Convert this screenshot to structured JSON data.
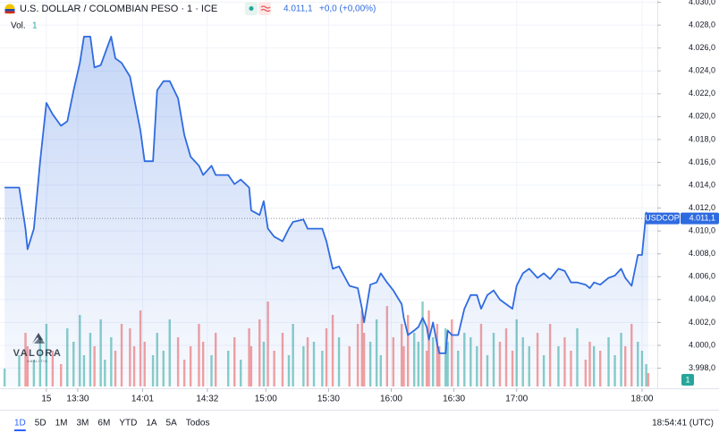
{
  "chart_data": {
    "type": "line",
    "title": "U.S. DOLLAR / COLOMBIAN PESO · 1 · ICE",
    "price": "4.011,1",
    "change": "+0,0 (+0,00%)",
    "vol_label": "Vol.",
    "vol_value": "1",
    "watermark": {
      "name": "VALORA",
      "sub": "ANALITIK"
    },
    "xlim": [
      772.8,
      1087.3
    ],
    "ylim": [
      3996.4,
      4030.2
    ],
    "grid": true,
    "xticks": [
      {
        "value": 795,
        "label": "15"
      },
      {
        "value": 810,
        "label": "13:30"
      },
      {
        "value": 841,
        "label": "14:01"
      },
      {
        "value": 872,
        "label": "14:32"
      },
      {
        "value": 900,
        "label": "15:00"
      },
      {
        "value": 930,
        "label": "15:30"
      },
      {
        "value": 960,
        "label": "16:00"
      },
      {
        "value": 990,
        "label": "16:30"
      },
      {
        "value": 1020,
        "label": "17:00"
      },
      {
        "value": 1080,
        "label": "18:00"
      }
    ],
    "yticks": [
      {
        "value": 3998,
        "label": "3.998,0"
      },
      {
        "value": 4000,
        "label": "4.000,0"
      },
      {
        "value": 4002,
        "label": "4.002,0"
      },
      {
        "value": 4004,
        "label": "4.004,0"
      },
      {
        "value": 4006,
        "label": "4.006,0"
      },
      {
        "value": 4008,
        "label": "4.008,0"
      },
      {
        "value": 4010,
        "label": "4.010,0"
      },
      {
        "value": 4012,
        "label": "4.012,0"
      },
      {
        "value": 4014,
        "label": "4.014,0"
      },
      {
        "value": 4016,
        "label": "4.016,0"
      },
      {
        "value": 4018,
        "label": "4.018,0"
      },
      {
        "value": 4020,
        "label": "4.020,0"
      },
      {
        "value": 4022,
        "label": "4.022,0"
      },
      {
        "value": 4024,
        "label": "4.024,0"
      },
      {
        "value": 4026,
        "label": "4.026,0"
      },
      {
        "value": 4028,
        "label": "4.028,0"
      },
      {
        "value": 4030,
        "label": "4.030,0"
      }
    ],
    "series": [
      {
        "name": "USDCOP",
        "color": "#2f6be0",
        "x": [
          775,
          782,
          785,
          786,
          789,
          792,
          795,
          798,
          802,
          805,
          808,
          811,
          813,
          816,
          818,
          821,
          823,
          826,
          828,
          831,
          835,
          837,
          840,
          842,
          846,
          848,
          851,
          854,
          858,
          861,
          864,
          868,
          870,
          874,
          876,
          882,
          885,
          888,
          892,
          893,
          897,
          899,
          901,
          904,
          908,
          911,
          913,
          918,
          920,
          923,
          927,
          929,
          932,
          935,
          940,
          944,
          946,
          947,
          950,
          953,
          955,
          958,
          961,
          965,
          966,
          968,
          971,
          973,
          975,
          977,
          978,
          980,
          982,
          983,
          986,
          987,
          989,
          992,
          995,
          998,
          1001,
          1003,
          1006,
          1009,
          1012,
          1015,
          1018,
          1020,
          1023,
          1026,
          1030,
          1033,
          1036,
          1040,
          1043,
          1046,
          1049,
          1053,
          1055,
          1057,
          1060,
          1064,
          1067,
          1070,
          1072,
          1075,
          1078,
          1080,
          1082,
          1083
        ],
        "values": [
          4013.8,
          4013.8,
          4010.2,
          4008.4,
          4010.2,
          4016.1,
          4021.2,
          4020.2,
          4019.2,
          4019.6,
          4022.3,
          4024.7,
          4027.0,
          4027.0,
          4024.3,
          4024.5,
          4025.5,
          4027.0,
          4025.1,
          4024.7,
          4023.5,
          4021.6,
          4018.8,
          4016.1,
          4016.1,
          4022.3,
          4023.1,
          4023.1,
          4021.6,
          4018.4,
          4016.5,
          4015.7,
          4014.9,
          4015.7,
          4014.9,
          4014.9,
          4014.1,
          4014.5,
          4013.8,
          4011.8,
          4011.4,
          4012.6,
          4010.2,
          4009.5,
          4009.1,
          4010.2,
          4010.8,
          4011.0,
          4010.2,
          4010.2,
          4010.2,
          4009.1,
          4006.7,
          4006.9,
          4005.2,
          4005.0,
          4003.2,
          4002.0,
          4005.3,
          4005.5,
          4006.3,
          4005.5,
          4004.8,
          4003.6,
          4002.4,
          4000.9,
          4001.3,
          4001.6,
          4002.4,
          4001.6,
          4000.5,
          4002.0,
          4000.1,
          3999.3,
          3999.3,
          4001.3,
          4000.9,
          4000.9,
          4003.2,
          4004.4,
          4004.4,
          4003.2,
          4004.4,
          4004.8,
          4004.0,
          4003.6,
          4003.2,
          4005.2,
          4006.3,
          4006.7,
          4005.9,
          4006.3,
          4005.8,
          4006.7,
          4006.5,
          4005.5,
          4005.5,
          4005.3,
          4005.0,
          4005.5,
          4005.3,
          4005.9,
          4006.1,
          4006.7,
          4005.9,
          4005.2,
          4007.9,
          4007.9,
          4011.6,
          4011.1
        ]
      }
    ],
    "last": {
      "value": 4011.1,
      "label": "4.011,1"
    },
    "volume": {
      "ylim": [
        0,
        100
      ],
      "up_color": "#26a69a",
      "down_color": "#ef5350",
      "values": [
        20,
        35,
        60,
        45,
        30,
        55,
        70,
        40,
        25,
        65,
        50,
        80,
        35,
        60,
        45,
        75,
        30,
        55,
        40,
        70,
        65,
        45,
        85,
        50,
        35,
        60,
        40,
        75,
        55,
        30,
        45,
        70,
        50,
        35,
        60,
        40,
        55,
        30,
        65,
        45,
        75,
        50,
        95,
        40,
        60,
        35,
        70,
        45,
        55,
        50,
        40,
        65,
        80,
        55,
        45,
        70,
        85,
        60,
        50,
        75,
        35,
        90,
        55,
        70,
        45,
        80,
        60,
        50,
        95,
        40,
        85,
        55,
        70,
        45,
        65,
        50,
        75,
        40,
        60,
        55,
        45,
        70,
        35,
        60,
        50,
        65,
        40,
        75,
        55,
        45,
        60,
        35,
        70,
        45,
        55,
        40,
        65,
        30,
        50,
        45,
        40,
        55,
        35,
        60,
        45,
        70,
        50,
        40,
        25,
        15
      ]
    },
    "ranges": [
      "1D",
      "5D",
      "1M",
      "3M",
      "6M",
      "YTD",
      "1A",
      "5A",
      "Todos"
    ],
    "active_range": 0,
    "clock": "18:54:41 (UTC)"
  }
}
